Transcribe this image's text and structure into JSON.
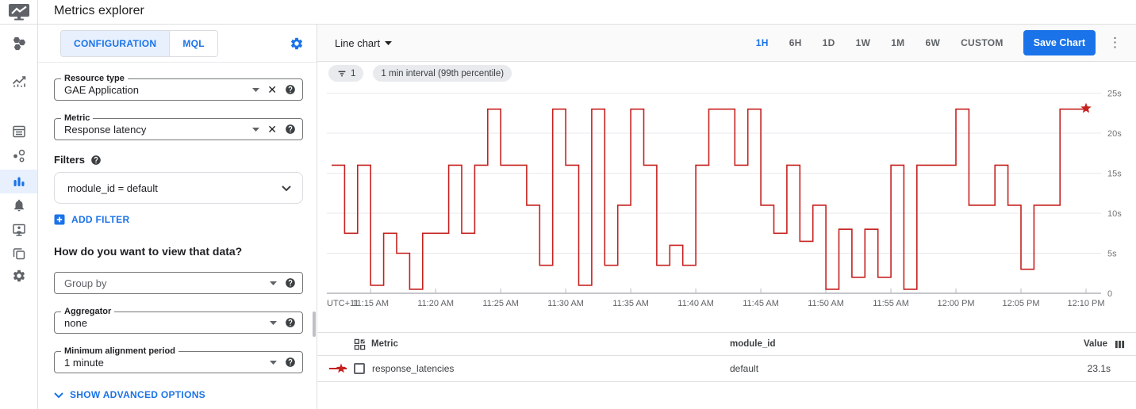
{
  "app": {
    "title": "Metrics explorer"
  },
  "sidebar": {
    "items": [
      {
        "icon": "overview-icon",
        "selected": false
      },
      {
        "icon": "metrics-icon",
        "selected": false
      },
      {
        "icon": "dashboards-icon",
        "selected": false
      },
      {
        "icon": "services-icon",
        "selected": false
      },
      {
        "icon": "metrics-explorer-icon",
        "selected": true
      },
      {
        "icon": "alerting-icon",
        "selected": false
      },
      {
        "icon": "uptime-checks-icon",
        "selected": false
      },
      {
        "icon": "groups-icon",
        "selected": false
      },
      {
        "icon": "settings-icon",
        "selected": false
      }
    ]
  },
  "config": {
    "tabs": [
      {
        "label": "CONFIGURATION",
        "selected": true
      },
      {
        "label": "MQL",
        "selected": false
      }
    ],
    "resource_type": {
      "label": "Resource type",
      "value": "GAE Application"
    },
    "metric": {
      "label": "Metric",
      "value": "Response latency"
    },
    "filters_heading": "Filters",
    "filter_chip": "module_id = default",
    "add_filter": "ADD FILTER",
    "view_heading": "How do you want to view that data?",
    "group_by_placeholder": "Group by",
    "aggregator": {
      "label": "Aggregator",
      "value": "none"
    },
    "alignment": {
      "label": "Minimum alignment period",
      "value": "1 minute"
    },
    "advanced": "SHOW ADVANCED OPTIONS"
  },
  "toolbar": {
    "chart_type": "Line chart",
    "ranges": [
      "1H",
      "6H",
      "1D",
      "1W",
      "1M",
      "6W",
      "CUSTOM"
    ],
    "selected_range": "1H",
    "save_label": "Save Chart"
  },
  "chips": {
    "filter_count": "1",
    "interval": "1 min interval (99th percentile)"
  },
  "chart_data": {
    "type": "line",
    "step": "after",
    "title": "",
    "xlabel": "",
    "ylabel": "",
    "grid": "horizontal",
    "legend_position": "table-below",
    "utc_label": "UTC+11",
    "x_start": "11:12 AM",
    "x_step_minutes": 1,
    "x_ticks": [
      {
        "label": "11:15 AM",
        "t": 3
      },
      {
        "label": "11:20 AM",
        "t": 8
      },
      {
        "label": "11:25 AM",
        "t": 13
      },
      {
        "label": "11:30 AM",
        "t": 18
      },
      {
        "label": "11:35 AM",
        "t": 23
      },
      {
        "label": "11:40 AM",
        "t": 28
      },
      {
        "label": "11:45 AM",
        "t": 33
      },
      {
        "label": "11:50 AM",
        "t": 38
      },
      {
        "label": "11:55 AM",
        "t": 43
      },
      {
        "label": "12:00 PM",
        "t": 48
      },
      {
        "label": "12:05 PM",
        "t": 53
      },
      {
        "label": "12:10 PM",
        "t": 58
      }
    ],
    "y_ticks": [
      {
        "label": "0",
        "v": 0
      },
      {
        "label": "5s",
        "v": 5
      },
      {
        "label": "10s",
        "v": 10
      },
      {
        "label": "15s",
        "v": 15
      },
      {
        "label": "20s",
        "v": 20
      },
      {
        "label": "25s",
        "v": 25
      }
    ],
    "ylim": [
      0,
      26
    ],
    "series": [
      {
        "name": "response_latencies",
        "color": "#c5221f",
        "end_marker": "star",
        "values": [
          16,
          7.5,
          16,
          1,
          7.5,
          5,
          0.5,
          7.5,
          7.5,
          16,
          7.5,
          16,
          23,
          16,
          16,
          11,
          3.5,
          23,
          16,
          1,
          23,
          3.5,
          11,
          23,
          16,
          3.5,
          6,
          3.5,
          16,
          23,
          23,
          16,
          23,
          11,
          7.5,
          16,
          6.5,
          11,
          0.5,
          8,
          2,
          8,
          2,
          16,
          0.5,
          16,
          16,
          16,
          23,
          11,
          11,
          16,
          11,
          3,
          11,
          11,
          23,
          23,
          23.1
        ]
      }
    ]
  },
  "table": {
    "metric_header": "Metric",
    "module_header": "module_id",
    "value_header": "Value",
    "rows": [
      {
        "metric": "response_latencies",
        "module_id": "default",
        "value": "23.1s"
      }
    ]
  },
  "colors": {
    "accent": "#1a73e8",
    "series_red": "#c5221f",
    "selected_tab_bg": "#e8f0fe",
    "rail_selected_bg": "#e8f0fe"
  }
}
